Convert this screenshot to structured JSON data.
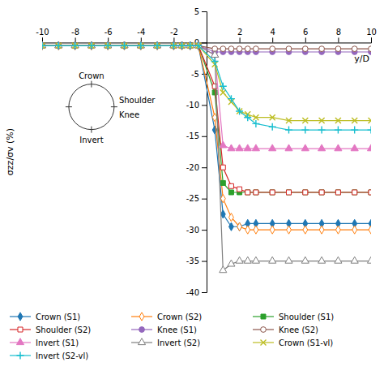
{
  "chart_data": {
    "type": "line",
    "ylabel": "σzz/σv (%)",
    "xlabel": "y/D",
    "xlim": [
      -10,
      10
    ],
    "ylim": [
      -40,
      5
    ],
    "yticks": [
      5,
      0,
      -5,
      -10,
      -15,
      -20,
      -25,
      -30,
      -35,
      -40
    ],
    "xticks": [
      -10,
      -8,
      -6,
      -4,
      -2,
      {
        "value": 0,
        "label": null
      },
      2,
      4,
      6,
      8,
      10
    ],
    "x": [
      -10,
      -9,
      -8,
      -7,
      -6,
      -5,
      -4,
      -3,
      -2,
      -1.5,
      -1,
      -0.5,
      0.5,
      1,
      1.5,
      2,
      2.5,
      3,
      4,
      5,
      6,
      7,
      8,
      9,
      10
    ],
    "series": [
      {
        "name": "Crown (S1)",
        "marker": "diamond",
        "values": [
          -0.5,
          -0.5,
          -0.5,
          -0.5,
          -0.5,
          -0.5,
          -0.5,
          -0.5,
          -0.5,
          -0.5,
          -0.5,
          -0.5,
          -14.0,
          -27.5,
          -29.5,
          -29.5,
          -29,
          -29,
          -29,
          -29,
          -29,
          -29,
          -29,
          -29,
          -29
        ]
      },
      {
        "name": "Crown (S2)",
        "marker": "diamond-open",
        "values": [
          -0.5,
          -0.5,
          -0.5,
          -0.5,
          -0.5,
          -0.5,
          -0.5,
          -0.5,
          -0.5,
          -0.5,
          -0.5,
          -0.5,
          -12.0,
          -25.0,
          -28.0,
          -29.5,
          -30,
          -30,
          -30,
          -30,
          -30,
          -30,
          -30,
          -30,
          -30
        ]
      },
      {
        "name": "Shoulder (S1)",
        "marker": "square",
        "values": [
          -0.5,
          -0.5,
          -0.5,
          -0.5,
          -0.5,
          -0.5,
          -0.5,
          -0.5,
          -0.5,
          -0.5,
          -0.5,
          -0.5,
          -8.0,
          -22.5,
          -24.0,
          -24.0,
          -24,
          -24,
          -24,
          -24,
          -24,
          -24,
          -24,
          -24,
          -24
        ]
      },
      {
        "name": "Shoulder (S2)",
        "marker": "square-open",
        "values": [
          -0.5,
          -0.5,
          -0.5,
          -0.5,
          -0.5,
          -0.5,
          -0.5,
          -0.5,
          -0.5,
          -0.5,
          -0.5,
          -0.5,
          -7.0,
          -20.0,
          -23.0,
          -23.5,
          -24,
          -24,
          -24,
          -24,
          -24,
          -24,
          -24,
          -24,
          -24
        ]
      },
      {
        "name": "Knee (S1)",
        "marker": "circle",
        "values": [
          -0.5,
          -0.5,
          -0.5,
          -0.5,
          -0.5,
          -0.5,
          -0.5,
          -0.5,
          -0.5,
          -0.5,
          -0.5,
          -0.5,
          -1.5,
          -1.5,
          -1.5,
          -1.5,
          -1.5,
          -1.5,
          -1.5,
          -1.5,
          -1.5,
          -1.5,
          -1.5,
          -1.5,
          -1.5
        ]
      },
      {
        "name": "Knee (S2)",
        "marker": "circle-open",
        "values": [
          -0.5,
          -0.5,
          -0.5,
          -0.5,
          -0.5,
          -0.5,
          -0.5,
          -0.5,
          -0.5,
          -0.5,
          -0.5,
          -0.5,
          -1.0,
          -1.0,
          -1.0,
          -1.0,
          -1.0,
          -1.0,
          -1.0,
          -1.0,
          -1.0,
          -1.0,
          -1.0,
          -1.0,
          -1.0
        ]
      },
      {
        "name": "Invert (S1)",
        "marker": "triangle",
        "values": [
          -0.5,
          -0.5,
          -0.5,
          -0.5,
          -0.5,
          -0.5,
          -0.5,
          -0.5,
          -0.5,
          -0.5,
          -0.5,
          -0.5,
          -2.0,
          -16.5,
          -17.0,
          -17.0,
          -17,
          -17,
          -17,
          -17,
          -17,
          -17,
          -17,
          -17,
          -17
        ]
      },
      {
        "name": "Invert (S2)",
        "marker": "triangle-open",
        "values": [
          -0.5,
          -0.5,
          -0.5,
          -0.5,
          -0.5,
          -0.5,
          -0.5,
          -0.5,
          -0.5,
          -0.5,
          -0.5,
          -0.5,
          -2.0,
          -36.5,
          -35.5,
          -35.0,
          -35,
          -35,
          -35,
          -35,
          -35,
          -35,
          -35,
          -35,
          -35
        ]
      },
      {
        "name": "Crown (S1-vl)",
        "marker": "x",
        "values": [
          -0.5,
          -0.5,
          -0.5,
          -0.5,
          -0.5,
          -0.5,
          -0.5,
          -0.5,
          -0.5,
          -0.5,
          -0.5,
          -0.5,
          -3.5,
          -8.0,
          -9.5,
          -11.0,
          -11.5,
          -12,
          -12,
          -12.5,
          -12.5,
          -12.5,
          -12.5,
          -12.5,
          -12.5
        ]
      },
      {
        "name": "Invert (S2-vl)",
        "marker": "plus",
        "values": [
          -0.5,
          -0.5,
          -0.5,
          -0.5,
          -0.5,
          -0.5,
          -0.5,
          -0.5,
          -0.5,
          -0.5,
          -0.5,
          -0.5,
          -3.0,
          -7.0,
          -9.0,
          -11.0,
          -12.0,
          -13,
          -13.5,
          -14,
          -14,
          -14,
          -14,
          -14,
          -14
        ]
      }
    ],
    "annotations": [
      "Crown",
      "Shoulder",
      "Knee",
      "Invert"
    ],
    "legend": "bottom"
  }
}
